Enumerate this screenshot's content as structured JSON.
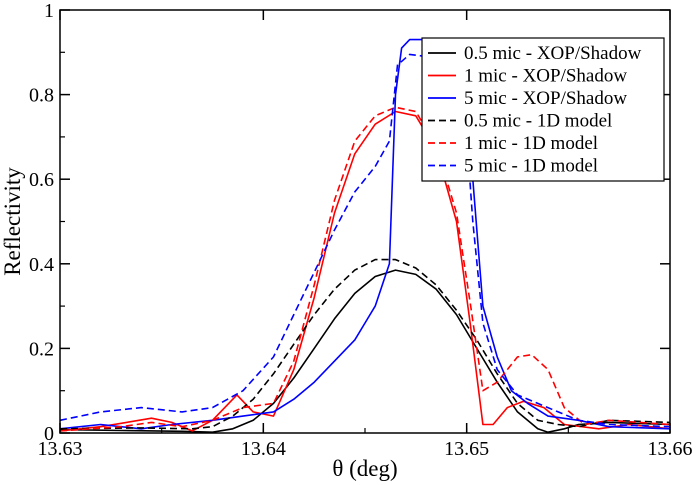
{
  "chart_data": {
    "type": "line",
    "xlabel": "θ (deg)",
    "ylabel": "Reflectivity",
    "xlim": [
      13.63,
      13.66
    ],
    "ylim": [
      0,
      1
    ],
    "x_ticks": [
      "13.63",
      "13.64",
      "13.65",
      "13.66"
    ],
    "y_ticks": [
      "0",
      "0.2",
      "0.4",
      "0.6",
      "0.8",
      "1"
    ],
    "grid": false,
    "legend_position": "top-right",
    "series": [
      {
        "name": "0.5 mic - XOP/Shadow",
        "color": "#000000",
        "dash": "solid",
        "points": [
          [
            13.63,
            0.008
          ],
          [
            13.633,
            0.006
          ],
          [
            13.636,
            0.004
          ],
          [
            13.6375,
            0.002
          ],
          [
            13.6385,
            0.01
          ],
          [
            13.6395,
            0.03
          ],
          [
            13.6405,
            0.07
          ],
          [
            13.6415,
            0.13
          ],
          [
            13.6425,
            0.2
          ],
          [
            13.6435,
            0.27
          ],
          [
            13.6445,
            0.33
          ],
          [
            13.6455,
            0.37
          ],
          [
            13.6465,
            0.385
          ],
          [
            13.6475,
            0.375
          ],
          [
            13.6485,
            0.34
          ],
          [
            13.6495,
            0.28
          ],
          [
            13.6505,
            0.2
          ],
          [
            13.6515,
            0.12
          ],
          [
            13.6525,
            0.05
          ],
          [
            13.6535,
            0.01
          ],
          [
            13.654,
            0.002
          ],
          [
            13.6548,
            0.01
          ],
          [
            13.6555,
            0.02
          ],
          [
            13.657,
            0.025
          ],
          [
            13.66,
            0.02
          ]
        ]
      },
      {
        "name": "1 mic - XOP/Shadow",
        "color": "#ff0000",
        "dash": "solid",
        "points": [
          [
            13.63,
            0.005
          ],
          [
            13.632,
            0.015
          ],
          [
            13.6345,
            0.035
          ],
          [
            13.6355,
            0.025
          ],
          [
            13.6365,
            0.005
          ],
          [
            13.6375,
            0.03
          ],
          [
            13.6387,
            0.09
          ],
          [
            13.6395,
            0.05
          ],
          [
            13.6405,
            0.04
          ],
          [
            13.6415,
            0.15
          ],
          [
            13.6425,
            0.32
          ],
          [
            13.6435,
            0.52
          ],
          [
            13.6445,
            0.66
          ],
          [
            13.6455,
            0.73
          ],
          [
            13.6465,
            0.76
          ],
          [
            13.6475,
            0.75
          ],
          [
            13.6485,
            0.67
          ],
          [
            13.6495,
            0.5
          ],
          [
            13.6502,
            0.25
          ],
          [
            13.6508,
            0.02
          ],
          [
            13.6513,
            0.02
          ],
          [
            13.652,
            0.06
          ],
          [
            13.6528,
            0.075
          ],
          [
            13.6538,
            0.06
          ],
          [
            13.6548,
            0.02
          ],
          [
            13.6565,
            0.01
          ],
          [
            13.658,
            0.02
          ],
          [
            13.66,
            0.01
          ]
        ]
      },
      {
        "name": "5 mic - XOP/Shadow",
        "color": "#0000ff",
        "dash": "solid",
        "points": [
          [
            13.63,
            0.01
          ],
          [
            13.632,
            0.02
          ],
          [
            13.634,
            0.01
          ],
          [
            13.6355,
            0.02
          ],
          [
            13.6375,
            0.03
          ],
          [
            13.639,
            0.04
          ],
          [
            13.6405,
            0.05
          ],
          [
            13.6415,
            0.08
          ],
          [
            13.6425,
            0.12
          ],
          [
            13.6435,
            0.17
          ],
          [
            13.6445,
            0.22
          ],
          [
            13.645,
            0.26
          ],
          [
            13.6455,
            0.3
          ],
          [
            13.6462,
            0.4
          ],
          [
            13.6465,
            0.8
          ],
          [
            13.6468,
            0.91
          ],
          [
            13.6472,
            0.93
          ],
          [
            13.648,
            0.93
          ],
          [
            13.6485,
            0.92
          ],
          [
            13.6492,
            0.89
          ],
          [
            13.6498,
            0.85
          ],
          [
            13.6503,
            0.6
          ],
          [
            13.6508,
            0.3
          ],
          [
            13.6515,
            0.18
          ],
          [
            13.6522,
            0.1
          ],
          [
            13.653,
            0.07
          ],
          [
            13.654,
            0.04
          ],
          [
            13.6555,
            0.03
          ],
          [
            13.657,
            0.015
          ],
          [
            13.66,
            0.01
          ]
        ]
      },
      {
        "name": "0.5 mic - 1D model",
        "color": "#000000",
        "dash": "dashed",
        "points": [
          [
            13.63,
            0.01
          ],
          [
            13.634,
            0.012
          ],
          [
            13.6365,
            0.01
          ],
          [
            13.6375,
            0.015
          ],
          [
            13.6385,
            0.04
          ],
          [
            13.6395,
            0.08
          ],
          [
            13.6405,
            0.14
          ],
          [
            13.6415,
            0.21
          ],
          [
            13.6425,
            0.28
          ],
          [
            13.6435,
            0.34
          ],
          [
            13.6445,
            0.385
          ],
          [
            13.6455,
            0.41
          ],
          [
            13.6465,
            0.41
          ],
          [
            13.6475,
            0.39
          ],
          [
            13.6485,
            0.35
          ],
          [
            13.6495,
            0.29
          ],
          [
            13.6505,
            0.22
          ],
          [
            13.6515,
            0.14
          ],
          [
            13.6525,
            0.07
          ],
          [
            13.6535,
            0.03
          ],
          [
            13.6545,
            0.02
          ],
          [
            13.6555,
            0.015
          ],
          [
            13.657,
            0.03
          ],
          [
            13.66,
            0.025
          ]
        ]
      },
      {
        "name": "1 mic - 1D model",
        "color": "#ff0000",
        "dash": "dashed",
        "points": [
          [
            13.63,
            0.005
          ],
          [
            13.633,
            0.015
          ],
          [
            13.6345,
            0.025
          ],
          [
            13.636,
            0.015
          ],
          [
            13.6375,
            0.03
          ],
          [
            13.639,
            0.06
          ],
          [
            13.6405,
            0.07
          ],
          [
            13.6415,
            0.17
          ],
          [
            13.6425,
            0.35
          ],
          [
            13.6435,
            0.55
          ],
          [
            13.6445,
            0.69
          ],
          [
            13.6455,
            0.75
          ],
          [
            13.6465,
            0.77
          ],
          [
            13.6475,
            0.76
          ],
          [
            13.6485,
            0.68
          ],
          [
            13.6495,
            0.52
          ],
          [
            13.6502,
            0.3
          ],
          [
            13.6508,
            0.1
          ],
          [
            13.6515,
            0.12
          ],
          [
            13.6525,
            0.18
          ],
          [
            13.6532,
            0.185
          ],
          [
            13.654,
            0.15
          ],
          [
            13.6548,
            0.06
          ],
          [
            13.6558,
            0.02
          ],
          [
            13.657,
            0.03
          ],
          [
            13.66,
            0.02
          ]
        ]
      },
      {
        "name": "5 mic - 1D model",
        "color": "#0000ff",
        "dash": "dashed",
        "points": [
          [
            13.63,
            0.03
          ],
          [
            13.632,
            0.05
          ],
          [
            13.634,
            0.06
          ],
          [
            13.636,
            0.05
          ],
          [
            13.6375,
            0.06
          ],
          [
            13.639,
            0.1
          ],
          [
            13.6405,
            0.18
          ],
          [
            13.6415,
            0.28
          ],
          [
            13.6425,
            0.38
          ],
          [
            13.6435,
            0.48
          ],
          [
            13.6445,
            0.57
          ],
          [
            13.6455,
            0.63
          ],
          [
            13.6462,
            0.69
          ],
          [
            13.6466,
            0.87
          ],
          [
            13.6472,
            0.895
          ],
          [
            13.648,
            0.89
          ],
          [
            13.649,
            0.87
          ],
          [
            13.6498,
            0.84
          ],
          [
            13.6503,
            0.5
          ],
          [
            13.6508,
            0.26
          ],
          [
            13.6515,
            0.15
          ],
          [
            13.6525,
            0.09
          ],
          [
            13.6535,
            0.07
          ],
          [
            13.6545,
            0.05
          ],
          [
            13.6555,
            0.03
          ],
          [
            13.657,
            0.02
          ],
          [
            13.66,
            0.015
          ]
        ]
      }
    ]
  }
}
